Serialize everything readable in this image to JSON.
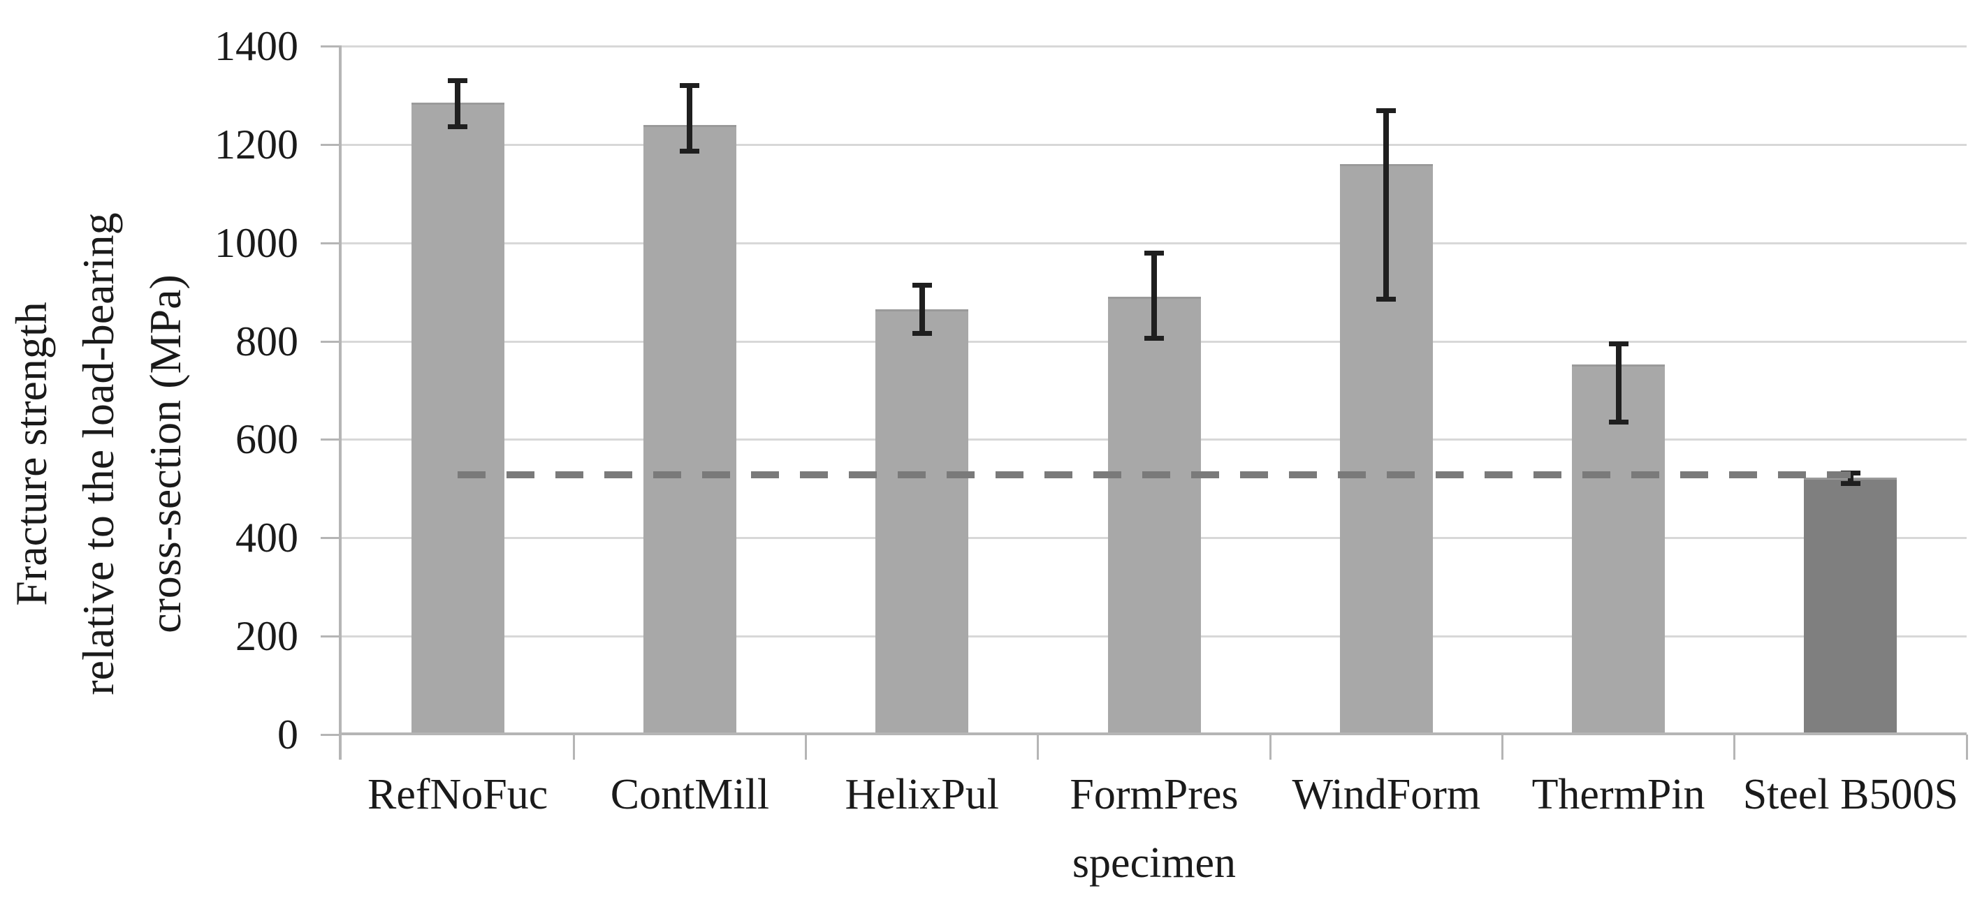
{
  "figure": {
    "x_axis_title": "specimen"
  },
  "colors": {
    "bar_fill": "#a8a8a8",
    "steel_bar_fill": "#7f7f7f",
    "error_bar": "#1f1f1f",
    "reference_dash": "#7a7a7a",
    "gridline": "#d8d8d8",
    "axis_line": "#b5b5b5",
    "text": "#1a1a1a",
    "background": "#ffffff"
  },
  "chart_data": {
    "type": "bar",
    "title": "",
    "xlabel": "specimen",
    "ylabel": "Fracture strength relative to the load-bearing cross-section (MPa)",
    "ylabel_lines": [
      "Fracture strength",
      "relative to the load-bearing",
      "cross-section (MPa)"
    ],
    "categories": [
      "RefNoFuc",
      "ContMill",
      "HelixPul",
      "FormPres",
      "WindForm",
      "ThermPin",
      "Steel B500S"
    ],
    "series": [
      {
        "name": "Fracture strength (MPa)",
        "values": [
          1285,
          1240,
          865,
          890,
          1160,
          753,
          522
        ],
        "error_low": [
          1235,
          1185,
          815,
          805,
          885,
          635,
          510
        ],
        "error_high": [
          1330,
          1320,
          915,
          980,
          1270,
          795,
          533
        ]
      }
    ],
    "bar_colors": [
      "#a8a8a8",
      "#a8a8a8",
      "#a8a8a8",
      "#a8a8a8",
      "#a8a8a8",
      "#a8a8a8",
      "#7f7f7f"
    ],
    "reference_line": {
      "value": 528,
      "style": "dashed",
      "color": "#7a7a7a",
      "note": "spans from first to last category center"
    },
    "yticks": [
      0,
      200,
      400,
      600,
      800,
      1000,
      1200,
      1400
    ],
    "ylim": [
      0,
      1400
    ],
    "grid": "horizontal-only",
    "legend": "none",
    "error_bars": "asymmetric-min-max"
  }
}
